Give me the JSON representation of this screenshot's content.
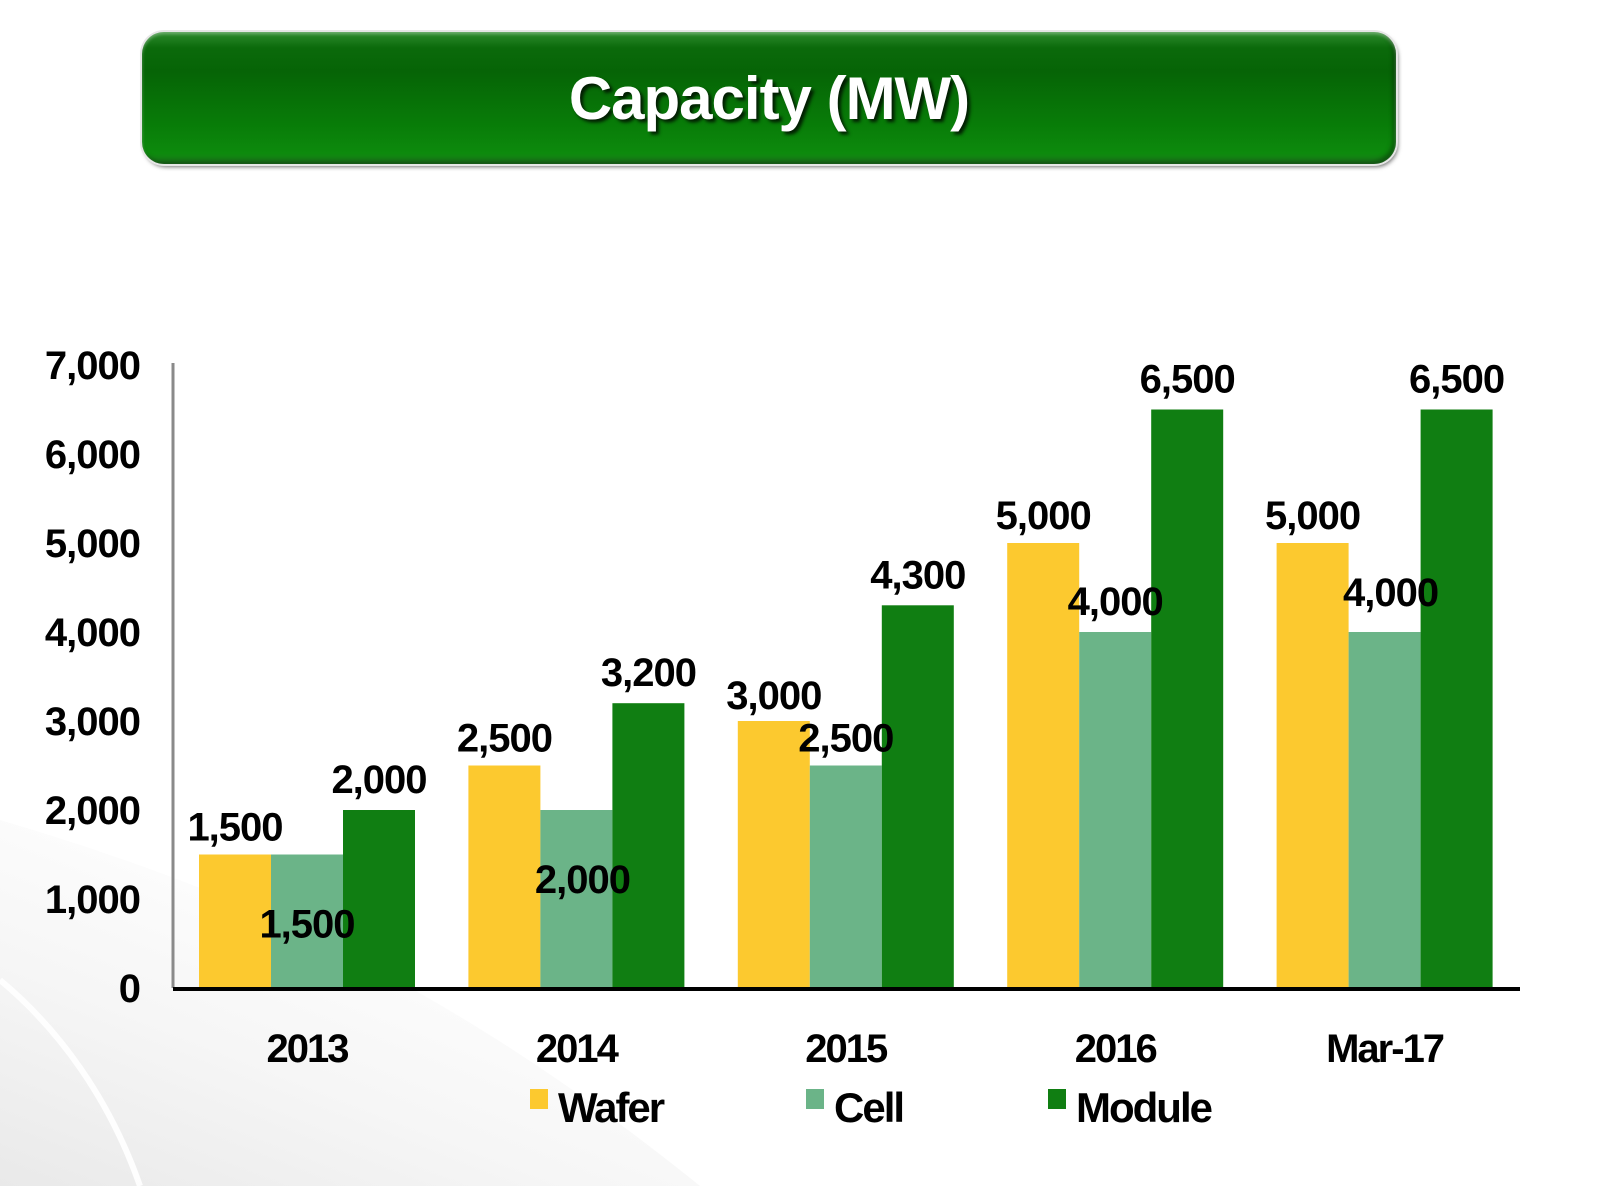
{
  "header": {
    "title": "Capacity (MW)",
    "banner_color": "#087808"
  },
  "chart_data": {
    "type": "bar",
    "title": "Capacity (MW)",
    "xlabel": "",
    "ylabel": "",
    "ylim": [
      0,
      7000
    ],
    "yticks": [
      0,
      1000,
      2000,
      3000,
      4000,
      5000,
      6000,
      7000
    ],
    "ytick_labels": [
      "0",
      "1,000",
      "2,000",
      "3,000",
      "4,000",
      "5,000",
      "6,000",
      "7,000"
    ],
    "grid": false,
    "legend_position": "bottom",
    "categories": [
      "2013",
      "2014",
      "2015",
      "2016",
      "Mar-17"
    ],
    "series": [
      {
        "name": "Wafer",
        "color": "#fcc92f",
        "values": [
          1500,
          2500,
          3000,
          5000,
          5000
        ],
        "labels": [
          "1,500",
          "2,500",
          "3,000",
          "5,000",
          "5,000"
        ]
      },
      {
        "name": "Cell",
        "color": "#6bb488",
        "values": [
          1500,
          2000,
          2500,
          4000,
          4000
        ],
        "labels": [
          "1,500",
          "2,000",
          "2,500",
          "4,000",
          "4,000"
        ]
      },
      {
        "name": "Module",
        "color": "#107e12",
        "values": [
          2000,
          3200,
          4300,
          6500,
          6500
        ],
        "labels": [
          "2,000",
          "3,200",
          "4,300",
          "6,500",
          "6,500"
        ]
      }
    ]
  }
}
